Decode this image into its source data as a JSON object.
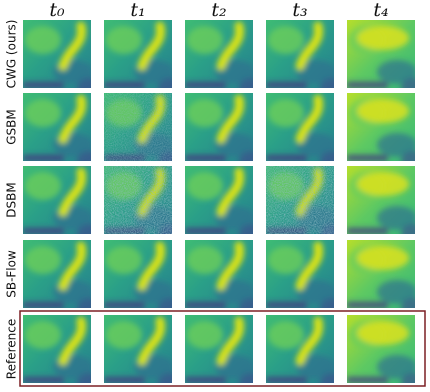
{
  "columns": [
    "t₀",
    "t₁",
    "t₂",
    "t₃",
    "t₄"
  ],
  "rows": [
    {
      "label": "CWG (ours)"
    },
    {
      "label": "GSBM"
    },
    {
      "label": "DSBM"
    },
    {
      "label": "SB-Flow"
    },
    {
      "label": "Reference"
    }
  ]
}
